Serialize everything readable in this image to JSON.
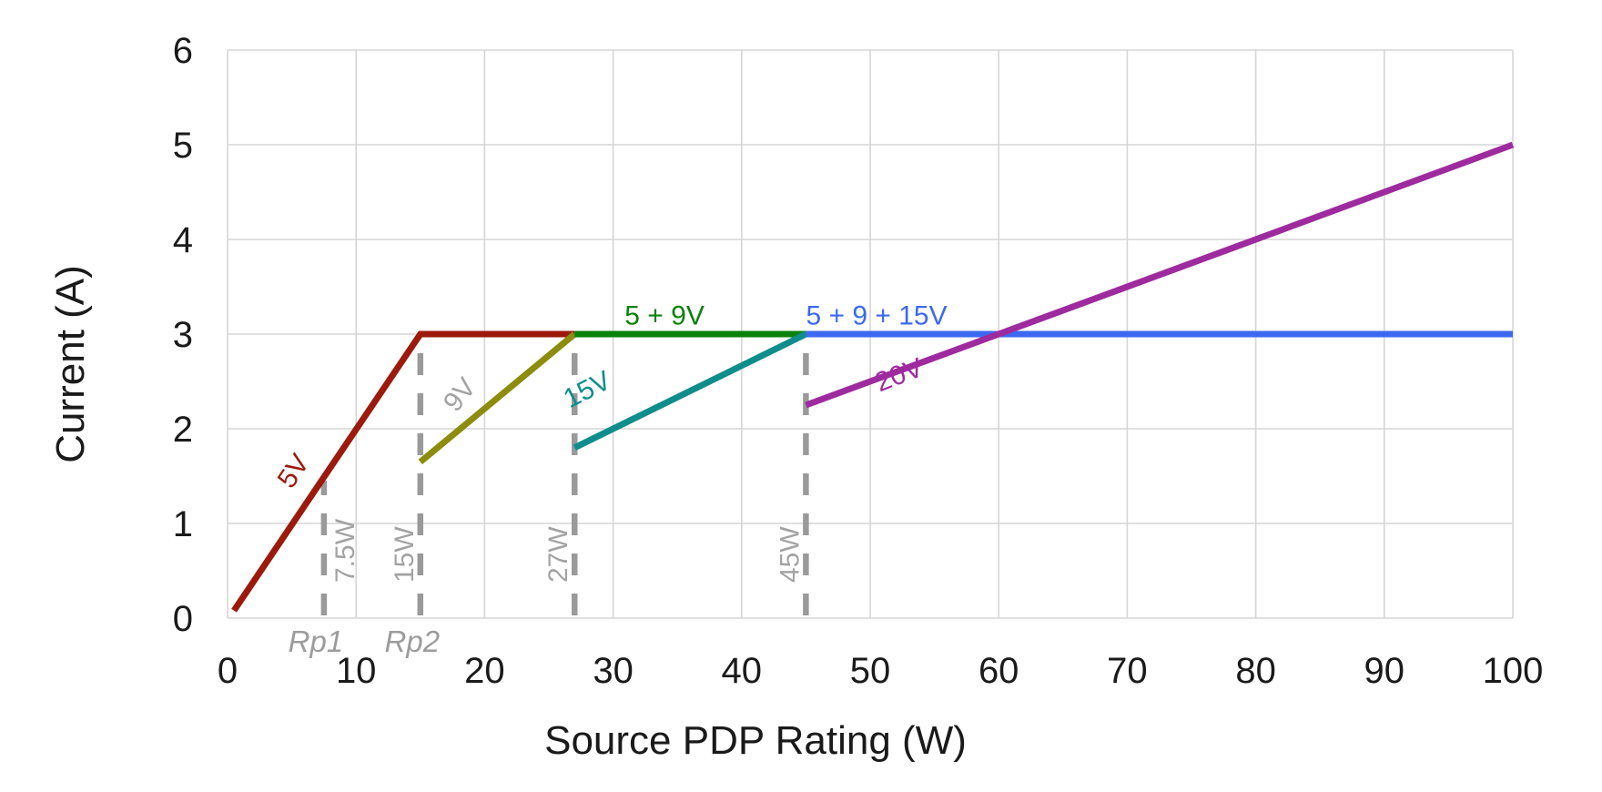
{
  "chart_data": {
    "type": "line",
    "title": "",
    "xlabel": "Source PDP Rating (W)",
    "ylabel": "Current (A)",
    "xlim": [
      0,
      100
    ],
    "ylim": [
      0,
      6
    ],
    "x_ticks": [
      0,
      10,
      20,
      30,
      40,
      50,
      60,
      70,
      80,
      90,
      100
    ],
    "y_ticks": [
      0,
      1,
      2,
      3,
      4,
      5,
      6
    ],
    "grid": "on",
    "legend_position": "inline-labels",
    "series": [
      {
        "name": "5V",
        "color": "#9B1A0B",
        "points": [
          [
            0.5,
            0.08
          ],
          [
            15,
            3
          ],
          [
            27,
            3
          ]
        ],
        "label": {
          "text": "5V",
          "x": 5.7,
          "y": 1.5,
          "rotate": -56,
          "color": "#9B1A0B",
          "anchor": "middle"
        }
      },
      {
        "name": "9V",
        "color": "#8C8C0E",
        "points": [
          [
            15,
            1.65
          ],
          [
            27,
            3
          ]
        ],
        "label": {
          "text": "9V",
          "x": 18.6,
          "y": 2.3,
          "rotate": -51,
          "color": "#A3A3A3",
          "anchor": "middle"
        }
      },
      {
        "name": "5 + 9V",
        "color": "#0A810A",
        "points": [
          [
            27,
            3
          ],
          [
            45,
            3
          ]
        ],
        "label": {
          "text": "5 + 9V",
          "x": 34,
          "y": 3.1,
          "rotate": 0,
          "color": "#0A810A",
          "anchor": "middle"
        }
      },
      {
        "name": "15V",
        "color": "#0F8D8D",
        "points": [
          [
            27,
            1.8
          ],
          [
            45,
            3
          ]
        ],
        "label": {
          "text": "15V",
          "x": 28.3,
          "y": 2.33,
          "rotate": -27,
          "color": "#0F8D8D",
          "anchor": "middle"
        }
      },
      {
        "name": "5 + 9 + 15V",
        "color": "#3C69F0",
        "points": [
          [
            45,
            3
          ],
          [
            100,
            3
          ]
        ],
        "label": {
          "text": "5 + 9 + 15V",
          "x": 50.5,
          "y": 3.1,
          "rotate": 0,
          "color": "#3C69F0",
          "anchor": "middle"
        }
      },
      {
        "name": "20V",
        "color": "#9E2B9E",
        "points": [
          [
            45,
            2.25
          ],
          [
            100,
            5
          ]
        ],
        "label": {
          "text": "20V",
          "x": 52.5,
          "y": 2.48,
          "rotate": -21,
          "color": "#9E2B9E",
          "anchor": "middle"
        }
      }
    ],
    "thresholds": [
      {
        "x": 7.5,
        "label": "7.5W",
        "top": 1.45,
        "label_side": "right"
      },
      {
        "x": 15,
        "label": "15W",
        "top": 2.93,
        "label_side": "left"
      },
      {
        "x": 27,
        "label": "27W",
        "top": 2.93,
        "label_side": "left"
      },
      {
        "x": 45,
        "label": "45W",
        "top": 2.98,
        "label_side": "left"
      }
    ],
    "rp_markers": [
      {
        "x": 7.5,
        "text": "Rp1"
      },
      {
        "x": 15,
        "text": "Rp2"
      }
    ],
    "colors": {
      "grid": "#D6D6D6",
      "dash": "#9A9A9A",
      "muted_label": "#A3A3A3",
      "rp_label": "#9C9C9C",
      "tick_text": "#1A1A1A"
    }
  }
}
